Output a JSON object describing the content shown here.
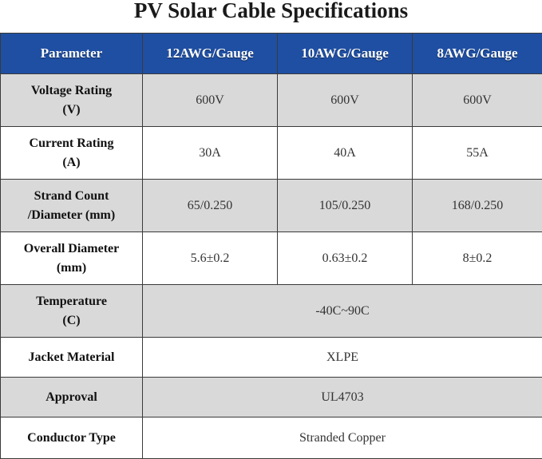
{
  "title": "PV Solar Cable Specifications",
  "header": {
    "parameter": "Parameter",
    "col1": "12AWG/Gauge",
    "col2": "10AWG/Gauge",
    "col3": "8AWG/Gauge"
  },
  "rows": [
    {
      "label_line1": "Voltage Rating",
      "label_line2": "(V)",
      "v1": "600V",
      "v2": "600V",
      "v3": "600V"
    },
    {
      "label_line1": "Current Rating",
      "label_line2": "(A)",
      "v1": "30A",
      "v2": "40A",
      "v3": "55A"
    },
    {
      "label_line1": "Strand Count",
      "label_line2": "/Diameter (mm)",
      "v1": "65/0.250",
      "v2": "105/0.250",
      "v3": "168/0.250"
    },
    {
      "label_line1": "Overall Diameter",
      "label_line2": "(mm)",
      "v1": "5.6±0.2",
      "v2": "0.63±0.2",
      "v3": "8±0.2"
    },
    {
      "label_line1": "Temperature",
      "label_line2": "(C)",
      "value": "-40C~90C"
    },
    {
      "label": "Jacket Material",
      "value": "XLPE"
    },
    {
      "label": "Approval",
      "value": "UL4703"
    },
    {
      "label": "Conductor Type",
      "value": "Stranded Copper"
    }
  ]
}
